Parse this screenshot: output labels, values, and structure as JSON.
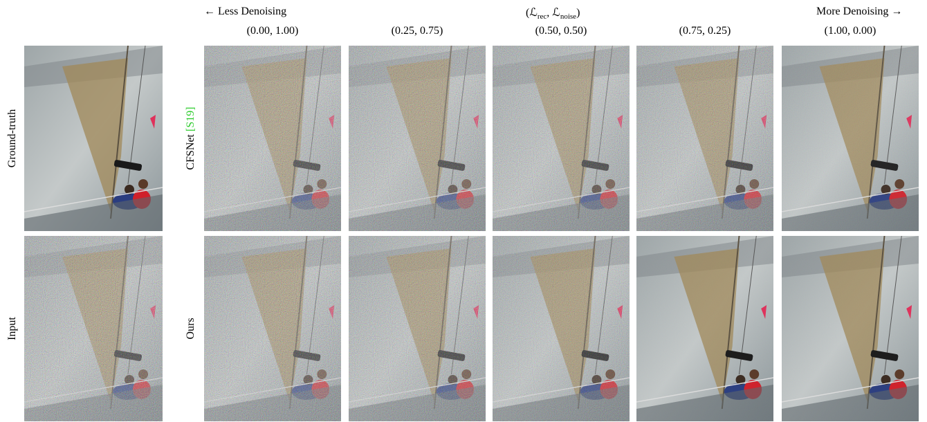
{
  "header": {
    "left": "← Less Denoising",
    "right": "More Denoising →",
    "center": [
      {
        "text": "(ℒ"
      },
      {
        "sub": "rec"
      },
      {
        "text": ", ℒ"
      },
      {
        "sub": "noise"
      },
      {
        "text": ")"
      }
    ]
  },
  "columns": [
    "(0.00, 1.00)",
    "(0.25, 0.75)",
    "(0.50, 0.50)",
    "(0.75, 0.25)",
    "(1.00, 0.00)"
  ],
  "reference_rows": [
    "Ground-truth",
    "Input"
  ],
  "method_rows": [
    {
      "name": "CFSNet",
      "citation": "[S19]"
    },
    {
      "name": "Ours"
    }
  ]
}
